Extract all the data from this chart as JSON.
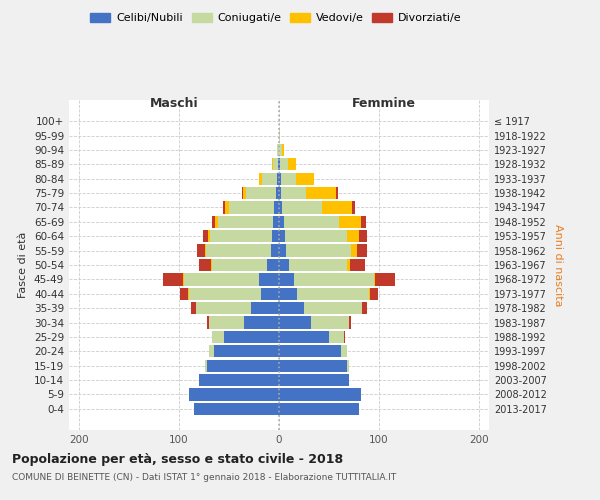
{
  "age_groups": [
    "0-4",
    "5-9",
    "10-14",
    "15-19",
    "20-24",
    "25-29",
    "30-34",
    "35-39",
    "40-44",
    "45-49",
    "50-54",
    "55-59",
    "60-64",
    "65-69",
    "70-74",
    "75-79",
    "80-84",
    "85-89",
    "90-94",
    "95-99",
    "100+"
  ],
  "birth_years": [
    "2013-2017",
    "2008-2012",
    "2003-2007",
    "1998-2002",
    "1993-1997",
    "1988-1992",
    "1983-1987",
    "1978-1982",
    "1973-1977",
    "1968-1972",
    "1963-1967",
    "1958-1962",
    "1953-1957",
    "1948-1952",
    "1943-1947",
    "1938-1942",
    "1933-1937",
    "1928-1932",
    "1923-1927",
    "1918-1922",
    "≤ 1917"
  ],
  "males": {
    "celibi": [
      85,
      90,
      80,
      72,
      65,
      55,
      35,
      28,
      18,
      20,
      12,
      8,
      7,
      6,
      5,
      3,
      2,
      1,
      0,
      0,
      0
    ],
    "coniugati": [
      0,
      0,
      0,
      2,
      5,
      12,
      35,
      55,
      72,
      75,
      55,
      65,
      62,
      55,
      45,
      30,
      15,
      5,
      2,
      0,
      0
    ],
    "vedovi": [
      0,
      0,
      0,
      0,
      0,
      0,
      0,
      0,
      1,
      1,
      1,
      1,
      2,
      3,
      4,
      3,
      3,
      1,
      0,
      0,
      0
    ],
    "divorziati": [
      0,
      0,
      0,
      0,
      0,
      0,
      2,
      5,
      8,
      20,
      12,
      8,
      5,
      3,
      2,
      1,
      0,
      0,
      0,
      0,
      0
    ]
  },
  "females": {
    "nubili": [
      80,
      82,
      70,
      68,
      62,
      50,
      32,
      25,
      18,
      15,
      10,
      7,
      6,
      5,
      3,
      2,
      2,
      1,
      0,
      0,
      0
    ],
    "coniugate": [
      0,
      0,
      0,
      2,
      6,
      15,
      38,
      58,
      72,
      80,
      58,
      65,
      62,
      55,
      40,
      25,
      15,
      8,
      3,
      1,
      0
    ],
    "vedove": [
      0,
      0,
      0,
      0,
      0,
      0,
      0,
      0,
      1,
      1,
      3,
      6,
      12,
      22,
      30,
      30,
      18,
      8,
      2,
      0,
      0
    ],
    "divorziate": [
      0,
      0,
      0,
      0,
      0,
      1,
      2,
      5,
      8,
      20,
      15,
      10,
      8,
      5,
      3,
      2,
      0,
      0,
      0,
      0,
      0
    ]
  },
  "colors": {
    "celibi_nubili": "#4472C4",
    "coniugati": "#c5d9a0",
    "vedovi": "#ffc000",
    "divorziati": "#c0392b"
  },
  "xlim": [
    -210,
    210
  ],
  "xticks": [
    -200,
    -100,
    0,
    100,
    200
  ],
  "xticklabels": [
    "200",
    "100",
    "0",
    "100",
    "200"
  ],
  "title": "Popolazione per età, sesso e stato civile - 2018",
  "subtitle": "COMUNE DI BEINETTE (CN) - Dati ISTAT 1° gennaio 2018 - Elaborazione TUTTITALIA.IT",
  "ylabel": "Fasce di età",
  "ylabel_right": "Anni di nascita",
  "label_maschi": "Maschi",
  "label_femmine": "Femmine",
  "legend_labels": [
    "Celibi/Nubili",
    "Coniugati/e",
    "Vedovi/e",
    "Divorziati/e"
  ],
  "bg_color": "#f0f0f0",
  "plot_bg": "#ffffff",
  "fig_width": 6.0,
  "fig_height": 5.0
}
